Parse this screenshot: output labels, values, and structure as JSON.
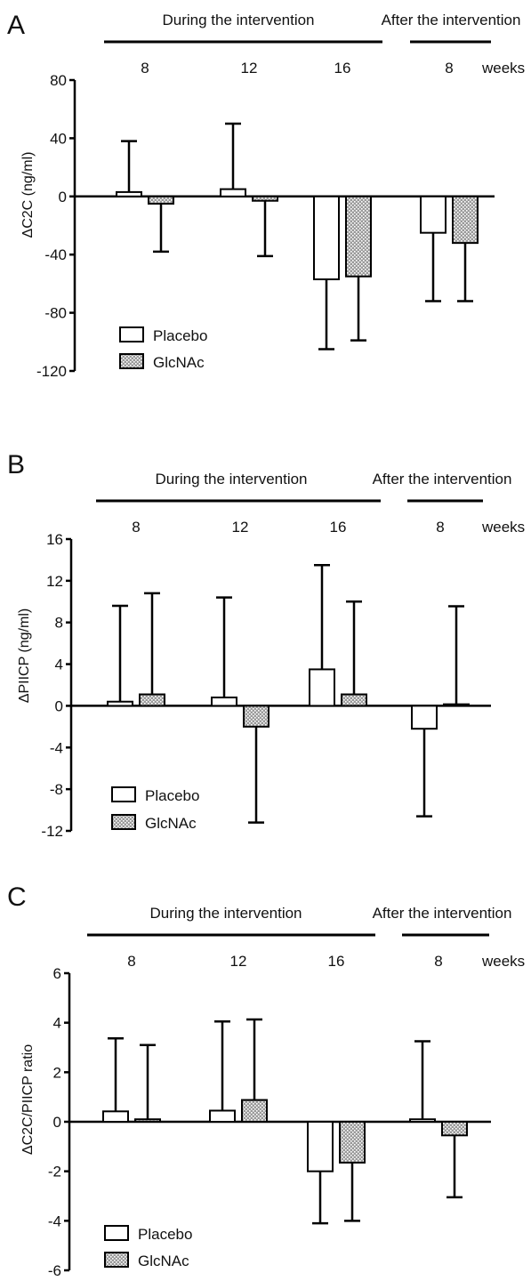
{
  "figure": {
    "colors": {
      "line": "#000000",
      "placebo_fill": "#ffffff",
      "glcnac_fill": "#9a9a9a",
      "glcnac_dot": "#ffffff"
    }
  },
  "chart_data": [
    {
      "type": "bar",
      "panel_label": "A",
      "period_labels": [
        "During the intervention",
        "After the intervention"
      ],
      "categories": [
        "8",
        "12",
        "16",
        "8"
      ],
      "weeks_label": "weeks",
      "ylabel": "ΔC2C (ng/ml)",
      "ylim": [
        -120,
        80
      ],
      "yticks": [
        80,
        40,
        0,
        -40,
        -80,
        -120
      ],
      "ytick_labels": [
        "80",
        "40",
        "0",
        "-40",
        "-80",
        "-120"
      ],
      "series": [
        {
          "name": "Placebo",
          "values": [
            3,
            5,
            -57,
            -25
          ],
          "errors": [
            35,
            45,
            48,
            47
          ]
        },
        {
          "name": "GlcNAc",
          "values": [
            -5,
            -3,
            -55,
            -32
          ],
          "errors": [
            33,
            38,
            44,
            40
          ]
        }
      ],
      "legend_position": "bottom-left"
    },
    {
      "type": "bar",
      "panel_label": "B",
      "period_labels": [
        "During the intervention",
        "After the intervention"
      ],
      "categories": [
        "8",
        "12",
        "16",
        "8"
      ],
      "weeks_label": "weeks",
      "ylabel": "ΔPIICP (ng/ml)",
      "ylim": [
        -12,
        16
      ],
      "yticks": [
        16,
        12,
        8,
        4,
        0,
        -4,
        -8,
        -12
      ],
      "ytick_labels": [
        "16",
        "12",
        "8",
        "4",
        "0",
        "-4",
        "-8",
        "-12"
      ],
      "series": [
        {
          "name": "Placebo",
          "values": [
            0.4,
            0.8,
            3.5,
            -2.2
          ],
          "errors": [
            9.2,
            9.6,
            10.0,
            8.4
          ]
        },
        {
          "name": "GlcNAc",
          "values": [
            1.1,
            -2.0,
            1.1,
            0.15
          ],
          "errors": [
            9.7,
            9.2,
            8.9,
            9.4
          ]
        }
      ],
      "legend_position": "bottom-left"
    },
    {
      "type": "bar",
      "panel_label": "C",
      "period_labels": [
        "During the intervention",
        "After the intervention"
      ],
      "categories": [
        "8",
        "12",
        "16",
        "8"
      ],
      "weeks_label": "weeks",
      "ylabel": "ΔC2C/PIICP ratio",
      "ylim": [
        -6,
        6
      ],
      "yticks": [
        6,
        4,
        2,
        0,
        -2,
        -4,
        -6
      ],
      "ytick_labels": [
        "6",
        "4",
        "2",
        "0",
        "-2",
        "-4",
        "-6"
      ],
      "series": [
        {
          "name": "Placebo",
          "values": [
            0.42,
            0.45,
            -2.0,
            0.1
          ],
          "errors": [
            2.95,
            3.6,
            2.1,
            3.15
          ]
        },
        {
          "name": "GlcNAc",
          "values": [
            0.1,
            0.88,
            -1.65,
            -0.55
          ],
          "errors": [
            3.0,
            3.25,
            2.35,
            2.5
          ]
        }
      ],
      "legend_position": "bottom-left"
    }
  ]
}
